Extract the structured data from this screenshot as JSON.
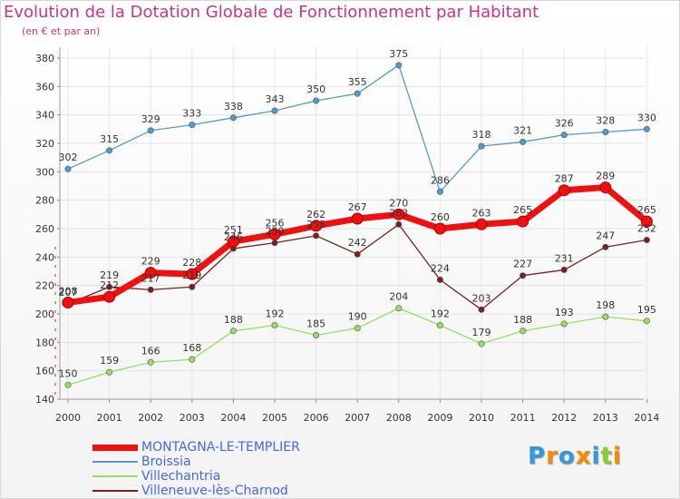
{
  "chart_data": {
    "type": "line",
    "title": "Evolution de la Dotation Globale de Fonctionnement par Habitant",
    "subtitle": "(en € et par an)",
    "x": [
      "2000",
      "2001",
      "2002",
      "2003",
      "2004",
      "2005",
      "2006",
      "2007",
      "2008",
      "2009",
      "2010",
      "2011",
      "2012",
      "2013",
      "2014"
    ],
    "ylim": [
      140,
      380
    ],
    "yticks": [
      140,
      160,
      180,
      200,
      220,
      240,
      260,
      280,
      300,
      320,
      340,
      360,
      380
    ],
    "grid": true,
    "legend_position": "bottom-left",
    "series": [
      {
        "name": "MONTAGNA-LE-TEMPLIER",
        "color": "#ee1111",
        "values": [
          208,
          212,
          229,
          228,
          251,
          256,
          262,
          267,
          270,
          260,
          263,
          265,
          287,
          289,
          265
        ]
      },
      {
        "name": "Broissia",
        "color": "#5599cc",
        "values": [
          302,
          315,
          329,
          333,
          338,
          343,
          350,
          355,
          375,
          286,
          318,
          321,
          326,
          328,
          330
        ]
      },
      {
        "name": "Villechantria",
        "color": "#99dd66",
        "values": [
          150,
          159,
          166,
          168,
          188,
          192,
          185,
          190,
          204,
          192,
          179,
          188,
          193,
          198,
          195
        ]
      },
      {
        "name": "Villeneuve-lès-Charnod",
        "color": "#772222",
        "values": [
          207,
          219,
          217,
          219,
          246,
          250,
          255,
          242,
          263,
          224,
          203,
          227,
          231,
          247,
          252
        ]
      }
    ]
  },
  "logo": {
    "letters": [
      "P",
      "r",
      "o",
      "x",
      "i",
      "t",
      "i"
    ],
    "colors": [
      "#3399dd",
      "#ff8800",
      "#3399dd",
      "#ff8800",
      "#3399dd",
      "#88cc33",
      "#ff8800"
    ]
  }
}
